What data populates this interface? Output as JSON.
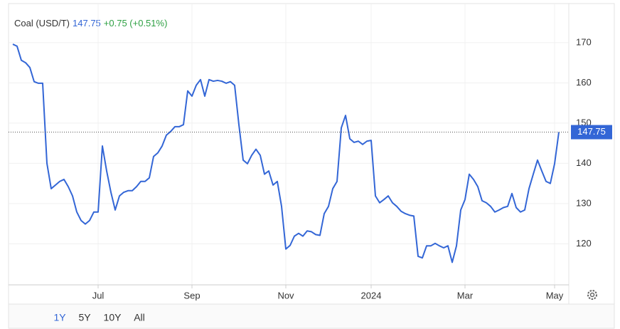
{
  "chart_data": {
    "type": "line",
    "title": "Coal (USD/T)",
    "last_value": 147.75,
    "change": "+0.75 (+0.51%)",
    "color": "#3366d6",
    "categories": [
      null,
      null,
      null,
      null,
      null,
      null,
      null,
      null,
      null,
      null,
      null,
      null,
      null,
      null,
      null,
      null,
      null,
      null,
      null,
      null,
      "Jul",
      null,
      null,
      null,
      null,
      null,
      null,
      null,
      null,
      null,
      null,
      null,
      null,
      null,
      null,
      null,
      null,
      null,
      null,
      null,
      null,
      null,
      "Sep",
      null,
      null,
      null,
      null,
      null,
      null,
      null,
      null,
      null,
      null,
      null,
      null,
      null,
      null,
      null,
      null,
      null,
      null,
      null,
      null,
      null,
      "Nov",
      null,
      null,
      null,
      null,
      null,
      null,
      null,
      null,
      null,
      null,
      null,
      null,
      null,
      null,
      null,
      null,
      null,
      null,
      null,
      "2024",
      null,
      null,
      null,
      null,
      null,
      null,
      null,
      null,
      null,
      null,
      null,
      null,
      null,
      null,
      null,
      null,
      null,
      null,
      null,
      null,
      null,
      "Mar",
      null,
      null,
      null,
      null,
      null,
      null,
      null,
      null,
      null,
      null,
      null,
      null,
      null,
      null,
      null,
      null,
      null,
      null,
      null,
      null,
      "May",
      null
    ],
    "values": [
      169.6,
      169.1,
      165.6,
      165,
      163.8,
      160.3,
      159.9,
      159.9,
      140,
      133.7,
      134.6,
      135.5,
      136,
      134.2,
      131.9,
      127.9,
      125.8,
      124.9,
      125.8,
      127.9,
      127.9,
      144.3,
      138.1,
      132.8,
      128.4,
      131.9,
      132.8,
      133.2,
      133.2,
      134.2,
      135.5,
      135.5,
      136.4,
      141.7,
      142.6,
      144.3,
      147,
      147.9,
      149.1,
      149.1,
      149.6,
      158,
      156.7,
      159.4,
      160.8,
      156.7,
      160.8,
      160.4,
      160.6,
      160.4,
      159.9,
      160.3,
      159.4,
      149.6,
      140.8,
      139.9,
      142,
      143.5,
      142,
      137.3,
      138.1,
      134.6,
      135.5,
      129.3,
      118.7,
      119.6,
      121.9,
      122.6,
      121.9,
      123.2,
      123,
      122.3,
      122.1,
      127.5,
      129.3,
      133.7,
      135.5,
      148.8,
      151.9,
      146.1,
      145.2,
      145.5,
      144.7,
      145.5,
      145.7,
      131.9,
      130.2,
      131,
      131.9,
      130.2,
      129.3,
      128.1,
      127.5,
      127.1,
      126.9,
      116.9,
      116.5,
      119.5,
      119.5,
      120.1,
      119.5,
      119,
      119.5,
      115.4,
      119.5,
      128.4,
      131,
      137.3,
      136,
      134.2,
      130.7,
      130.2,
      129.3,
      127.9,
      128.4,
      129,
      129.3,
      132.5,
      129,
      127.9,
      128.4,
      133.7,
      137.3,
      140.8,
      138.1,
      135.5,
      135,
      139.9,
      147.75
    ],
    "ylim": [
      109.8,
      179.7
    ],
    "yticks": [
      120,
      130,
      140,
      150,
      160,
      170
    ],
    "grid": true,
    "ranges": [
      "1Y",
      "5Y",
      "10Y",
      "All"
    ]
  }
}
